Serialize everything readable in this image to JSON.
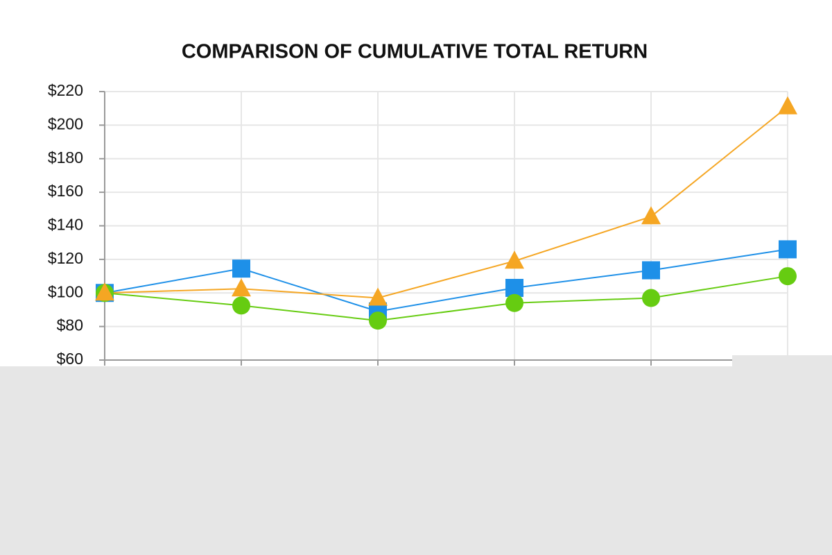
{
  "chart_data": {
    "type": "line",
    "title": "COMPARISON OF CUMULATIVE TOTAL RETURN",
    "categories": [
      null,
      null,
      null,
      null,
      null,
      null
    ],
    "series": [
      {
        "color": "#1e90e8",
        "marker": "square",
        "values": [
          100,
          114.5,
          89,
          103,
          113.5,
          126
        ]
      },
      {
        "color": "#66cc11",
        "marker": "circle",
        "values": [
          100,
          92.5,
          83.5,
          94,
          97,
          110
        ]
      },
      {
        "color": "#f5a623",
        "marker": "triangle",
        "values": [
          100,
          102.5,
          97,
          119,
          145.5,
          211
        ]
      }
    ],
    "ylim": [
      60,
      220
    ],
    "yticks": [
      {
        "value": 60,
        "label": "$60"
      },
      {
        "value": 80,
        "label": "$80"
      },
      {
        "value": 100,
        "label": "$100"
      },
      {
        "value": 120,
        "label": "$120"
      },
      {
        "value": 140,
        "label": "$140"
      },
      {
        "value": 160,
        "label": "$160"
      },
      {
        "value": 180,
        "label": "$180"
      },
      {
        "value": 200,
        "label": "$200"
      },
      {
        "value": 220,
        "label": "$220"
      }
    ],
    "grid": true
  }
}
